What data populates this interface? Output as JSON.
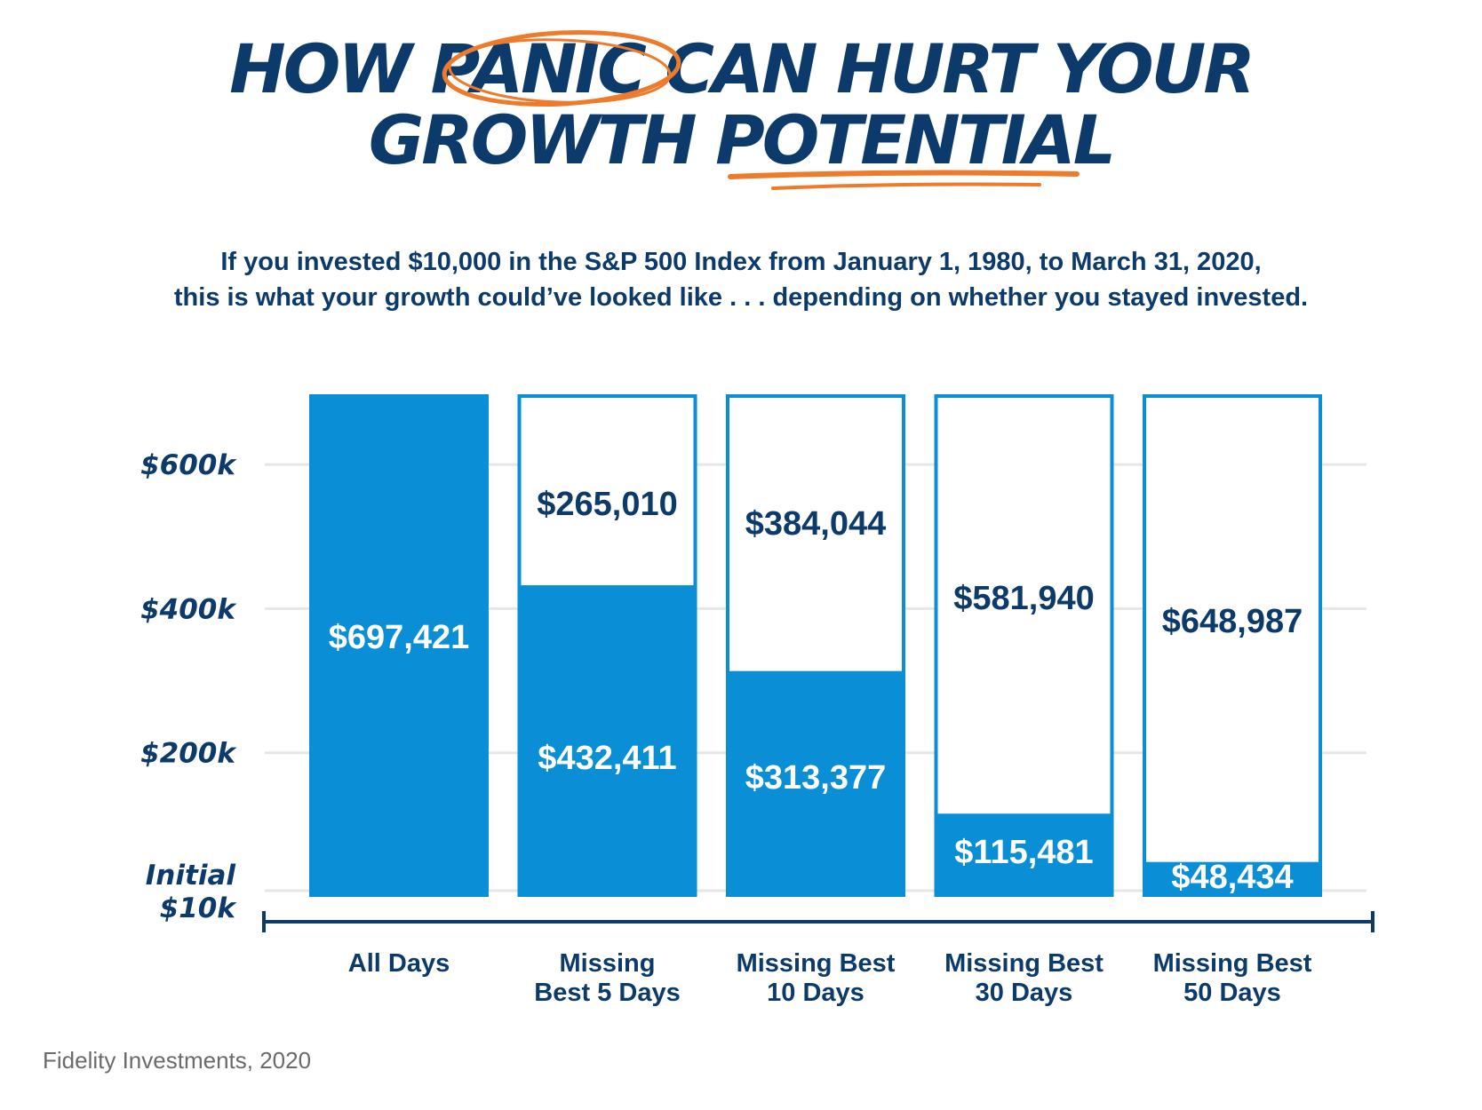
{
  "title": {
    "line1": "HOW PANIC CAN HURT YOUR",
    "line2": "GROWTH POTENTIAL"
  },
  "subtitle": {
    "line1": "If you invested $10,000 in the S&P 500 Index from January 1, 1980, to March 31, 2020,",
    "line2": "this is what your growth could’ve looked like . . . depending on whether you stayed invested."
  },
  "source": "Fidelity Investments, 2020",
  "colors": {
    "navy": "#0b3a6b",
    "blue": "#0a8fd6",
    "orange": "#ee7b2c",
    "grid": "#e6e6e6"
  },
  "chart_data": {
    "type": "bar",
    "categories": [
      [
        "All Days"
      ],
      [
        "Missing",
        "Best 5 Days"
      ],
      [
        "Missing Best",
        "10 Days"
      ],
      [
        "Missing Best",
        "30 Days"
      ],
      [
        "Missing Best",
        "50 Days"
      ]
    ],
    "values": [
      697421,
      432411,
      313377,
      115481,
      48434
    ],
    "value_labels": [
      "$697,421",
      "$432,411",
      "$313,377",
      "$115,481",
      "$48,434"
    ],
    "loss_values": [
      null,
      265010,
      384044,
      581940,
      648987
    ],
    "loss_labels": [
      "",
      "$265,010",
      "$384,044",
      "$581,940",
      "$648,987"
    ],
    "total": 697421,
    "yticks": [
      {
        "value": 600000,
        "label": [
          "$600k"
        ]
      },
      {
        "value": 400000,
        "label": [
          "$400k"
        ]
      },
      {
        "value": 200000,
        "label": [
          "$200k"
        ]
      },
      {
        "value": 10000,
        "label": [
          "Initial",
          "$10k"
        ]
      }
    ],
    "ylim": [
      0,
      697421
    ],
    "grid": true,
    "legend": "none"
  }
}
